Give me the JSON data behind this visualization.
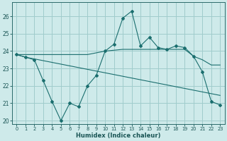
{
  "xlabel": "Humidex (Indice chaleur)",
  "xlim": [
    -0.5,
    23.5
  ],
  "ylim": [
    19.8,
    26.8
  ],
  "yticks": [
    20,
    21,
    22,
    23,
    24,
    25,
    26
  ],
  "xticks": [
    0,
    1,
    2,
    3,
    4,
    5,
    6,
    7,
    8,
    9,
    10,
    11,
    12,
    13,
    14,
    15,
    16,
    17,
    18,
    19,
    20,
    21,
    22,
    23
  ],
  "background_color": "#ceeaea",
  "grid_color": "#a0cccc",
  "line_color": "#1a6e6e",
  "line1_no_marker": {
    "x": [
      0,
      1,
      2,
      3,
      4,
      5,
      6,
      7,
      8,
      9,
      10,
      11,
      12,
      13,
      14,
      15,
      16,
      17,
      18,
      19,
      20,
      21,
      22,
      23
    ],
    "y": [
      23.8,
      23.65,
      23.55,
      23.45,
      23.35,
      23.25,
      23.15,
      23.05,
      22.95,
      22.85,
      22.75,
      22.65,
      22.55,
      22.45,
      22.35,
      22.25,
      22.15,
      22.05,
      21.95,
      21.85,
      21.75,
      21.65,
      21.55,
      21.45
    ]
  },
  "line2_no_marker": {
    "x": [
      0,
      1,
      2,
      3,
      4,
      5,
      6,
      7,
      8,
      9,
      10,
      11,
      12,
      13,
      14,
      15,
      16,
      17,
      18,
      19,
      20,
      21,
      22,
      23
    ],
    "y": [
      23.8,
      23.8,
      23.8,
      23.8,
      23.8,
      23.8,
      23.8,
      23.8,
      23.8,
      23.9,
      24.0,
      24.05,
      24.1,
      24.1,
      24.1,
      24.1,
      24.1,
      24.1,
      24.1,
      24.1,
      23.7,
      23.5,
      23.2,
      23.2
    ]
  },
  "line3_with_marker": {
    "x": [
      0,
      1,
      2,
      3,
      4,
      5,
      6,
      7,
      8,
      9,
      10,
      11,
      12,
      13,
      14,
      15,
      16,
      17,
      18,
      19,
      20,
      21,
      22,
      23
    ],
    "y": [
      23.8,
      23.65,
      23.5,
      22.3,
      21.1,
      20.0,
      21.0,
      20.8,
      22.0,
      22.6,
      24.0,
      24.4,
      25.9,
      26.3,
      24.3,
      24.8,
      24.2,
      24.1,
      24.3,
      24.2,
      23.7,
      22.8,
      21.1,
      20.9
    ]
  }
}
